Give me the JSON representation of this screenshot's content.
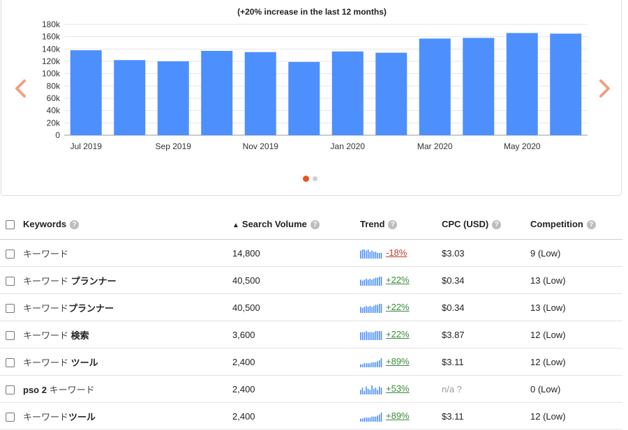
{
  "chart": {
    "subtitle": "(+20% increase in the last 12 months)",
    "prev_arrow_icon": "chevron-left-icon",
    "next_arrow_icon": "chevron-right-icon",
    "bar_color": "#4d8ffd",
    "arrow_color": "#f0a080"
  },
  "chart_data": {
    "type": "bar",
    "title": "(+20% increase in the last 12 months)",
    "xlabel": "",
    "ylabel": "",
    "months": [
      "Jul 2019",
      "Aug 2019",
      "Sep 2019",
      "Oct 2019",
      "Nov 2019",
      "Dec 2019",
      "Jan 2020",
      "Feb 2020",
      "Mar 2020",
      "Apr 2020",
      "May 2020",
      "Jun 2020"
    ],
    "x_tick_labels": [
      "Jul 2019",
      "Sep 2019",
      "Nov 2019",
      "Jan 2020",
      "Mar 2020",
      "May 2020"
    ],
    "values": [
      138000,
      122000,
      120000,
      137000,
      135000,
      119000,
      136000,
      134000,
      157000,
      158000,
      166000,
      165000
    ],
    "ylim": [
      0,
      180000
    ],
    "y_ticks": [
      "0",
      "20k",
      "40k",
      "60k",
      "80k",
      "100k",
      "120k",
      "140k",
      "160k",
      "180k"
    ],
    "grid": true
  },
  "carousel": {
    "active_index": 0,
    "count": 2
  },
  "table": {
    "headers": {
      "keywords": "Keywords",
      "search_volume": "Search Volume",
      "trend": "Trend",
      "cpc": "CPC (USD)",
      "competition": "Competition"
    },
    "help_glyph": "?",
    "rows": [
      {
        "base": "キーワード",
        "mod": "",
        "volume": "14,800",
        "trend": "-18%",
        "dir": "down",
        "cpc": "$3.03",
        "cpc_na": false,
        "competition": "9 (Low)",
        "spark": [
          7,
          8,
          8,
          7,
          8,
          6,
          7,
          6,
          6,
          5,
          5,
          5
        ]
      },
      {
        "base": "キーワード ",
        "mod": "プランナー",
        "volume": "40,500",
        "trend": "+22%",
        "dir": "up",
        "cpc": "$0.34",
        "cpc_na": false,
        "competition": "13 (Low)",
        "spark": [
          6,
          5,
          6,
          7,
          6,
          7,
          6,
          7,
          8,
          8,
          9,
          9
        ]
      },
      {
        "base": "キーワード",
        "mod": "プランナー",
        "volume": "40,500",
        "trend": "+22%",
        "dir": "up",
        "cpc": "$0.34",
        "cpc_na": false,
        "competition": "13 (Low)",
        "spark": [
          6,
          5,
          6,
          7,
          6,
          7,
          6,
          7,
          8,
          8,
          9,
          9
        ]
      },
      {
        "base": "キーワード ",
        "mod": "検索",
        "volume": "3,600",
        "trend": "+22%",
        "dir": "up",
        "cpc": "$3.87",
        "cpc_na": false,
        "competition": "12 (Low)",
        "spark": [
          7,
          7,
          7,
          8,
          7,
          7,
          7,
          7,
          8,
          8,
          8,
          8
        ]
      },
      {
        "base": "キーワード ",
        "mod": "ツール",
        "volume": "2,400",
        "trend": "+89%",
        "dir": "up",
        "cpc": "$3.11",
        "cpc_na": false,
        "competition": "12 (Low)",
        "spark": [
          3,
          3,
          4,
          4,
          4,
          4,
          5,
          5,
          5,
          6,
          7,
          9
        ]
      },
      {
        "base": "キーワード",
        "mod": "pso 2 ",
        "prefix": true,
        "volume": "2,400",
        "trend": "+53%",
        "dir": "up",
        "cpc": "n/a ?",
        "cpc_na": true,
        "competition": "0 (Low)",
        "spark": [
          4,
          6,
          3,
          7,
          5,
          4,
          8,
          5,
          6,
          4,
          7,
          6
        ]
      },
      {
        "base": "キーワード",
        "mod": "ツール",
        "volume": "2,400",
        "trend": "+89%",
        "dir": "up",
        "cpc": "$3.11",
        "cpc_na": false,
        "competition": "12 (Low)",
        "spark": [
          3,
          3,
          4,
          4,
          4,
          4,
          5,
          5,
          5,
          6,
          7,
          9
        ]
      }
    ]
  }
}
